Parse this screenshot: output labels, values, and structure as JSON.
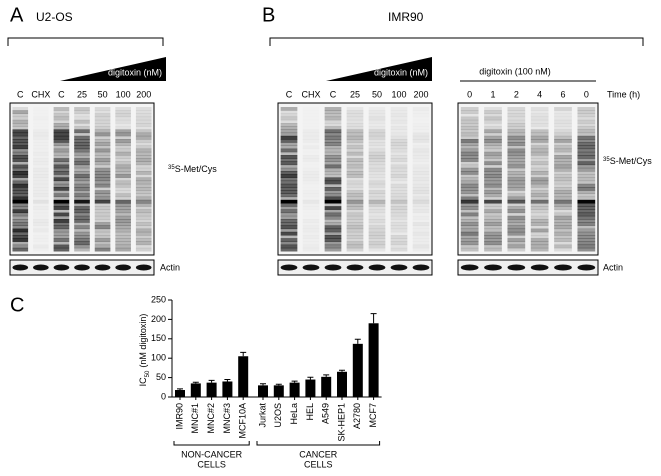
{
  "panel_a": {
    "letter": "A",
    "title": "U2-OS",
    "treatment": "digitoxin (nM)",
    "lanes": [
      "C",
      "CHX",
      "C",
      "25",
      "50",
      "100",
      "200"
    ],
    "signal": {
      "superscript": "35",
      "text": "S-Met/Cys"
    },
    "loading": "Actin"
  },
  "panel_b": {
    "letter": "B",
    "title": "IMR90",
    "treatment": "digitoxin (nM)",
    "lanes": [
      "C",
      "CHX",
      "C",
      "25",
      "50",
      "100",
      "200"
    ],
    "time_treatment": "digitoxin (100 nM)",
    "time_lanes": [
      "0",
      "1",
      "2",
      "4",
      "6",
      "0"
    ],
    "time_label": "Time (h)",
    "signal": {
      "superscript": "35",
      "text": "S-Met/Cys"
    },
    "loading": "Actin"
  },
  "panel_c": {
    "letter": "C"
  },
  "chart_data": {
    "type": "bar",
    "ylabel": "IC",
    "ylabel_sub": "50",
    "ylabel_rest": "(nM digitoxin)",
    "color": "#000000",
    "ylim": [
      0,
      250
    ],
    "yticks": [
      0,
      50,
      100,
      150,
      200,
      250
    ],
    "groups": [
      {
        "label": [
          "NON-CANCER",
          "CELLS"
        ],
        "categories": [
          "IMR90",
          "MNC#1",
          "MNC#2",
          "MNC#3",
          "MCF10A"
        ],
        "values": [
          18,
          35,
          37,
          40,
          105
        ],
        "errors": [
          3,
          3,
          6,
          5,
          10
        ]
      },
      {
        "label": [
          "CANCER",
          "CELLS"
        ],
        "categories": [
          "Jurkat",
          "U2OS",
          "HeLa",
          "HEL",
          "A549",
          "SK-HEP1",
          "A2780",
          "MCF7"
        ],
        "values": [
          30,
          30,
          37,
          45,
          52,
          65,
          137,
          190
        ],
        "errors": [
          4,
          3,
          4,
          6,
          5,
          4,
          12,
          25
        ]
      }
    ]
  }
}
